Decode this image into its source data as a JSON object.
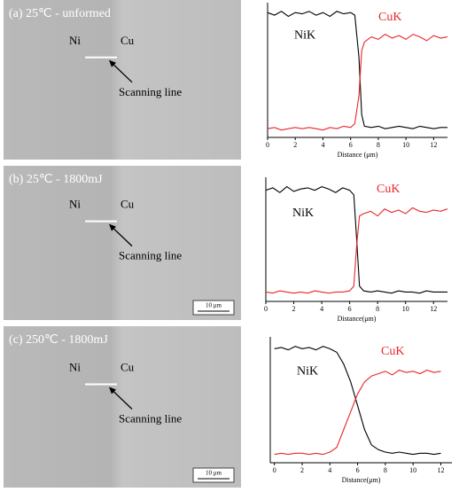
{
  "images": [
    {
      "label": "(a) 25℃ - unformed",
      "left": "Ni",
      "right": "Cu",
      "scan": "Scanning line"
    },
    {
      "label": "(b) 25℃ - 1800mJ",
      "left": "Ni",
      "right": "Cu",
      "scan": "Scanning line",
      "scale": "10 μm"
    },
    {
      "label": "(c) 250℃ - 1800mJ",
      "left": "Ni",
      "right": "Cu",
      "scan": "Scanning line",
      "scale": "10 μm"
    }
  ],
  "chart_data": [
    {
      "type": "line",
      "x_label": "Distance (μm)",
      "xlim": [
        0,
        13
      ],
      "ylim": [
        0,
        100
      ],
      "xticks": [
        0,
        2,
        4,
        6,
        8,
        10,
        12
      ],
      "x": [
        0,
        0.5,
        1,
        1.5,
        2,
        2.5,
        3,
        3.5,
        4,
        4.5,
        5,
        5.5,
        6,
        6.3,
        6.6,
        6.8,
        7,
        7.5,
        8,
        8.5,
        9,
        9.5,
        10,
        10.5,
        11,
        11.5,
        12,
        12.5,
        13
      ],
      "series": [
        {
          "name": "NiK",
          "color": "#000000",
          "values": [
            95,
            93,
            96,
            92,
            95,
            94,
            96,
            93,
            95,
            92,
            96,
            94,
            95,
            93,
            60,
            15,
            6,
            5,
            6,
            4,
            5,
            6,
            5,
            4,
            6,
            5,
            4,
            5,
            5
          ]
        },
        {
          "name": "CuK",
          "color": "#e8262a",
          "values": [
            4,
            5,
            3,
            4,
            5,
            4,
            5,
            4,
            3,
            5,
            4,
            6,
            5,
            8,
            30,
            65,
            72,
            76,
            74,
            78,
            75,
            77,
            74,
            78,
            76,
            73,
            77,
            75,
            76
          ]
        }
      ]
    },
    {
      "type": "line",
      "x_label": "Distance(μm)",
      "xlim": [
        0,
        13
      ],
      "ylim": [
        0,
        100
      ],
      "xticks": [
        0,
        2,
        4,
        6,
        8,
        10,
        12
      ],
      "x": [
        0,
        0.5,
        1,
        1.5,
        2,
        2.5,
        3,
        3.5,
        4,
        4.5,
        5,
        5.5,
        6,
        6.3,
        6.5,
        6.7,
        7,
        7.5,
        8,
        8.5,
        9,
        9.5,
        10,
        10.5,
        11,
        11.5,
        12,
        12.5,
        13
      ],
      "series": [
        {
          "name": "NiK",
          "color": "#000000",
          "values": [
            92,
            94,
            90,
            95,
            91,
            93,
            94,
            92,
            95,
            93,
            90,
            94,
            92,
            88,
            50,
            10,
            6,
            5,
            6,
            5,
            4,
            6,
            5,
            5,
            4,
            6,
            5,
            5,
            5
          ]
        },
        {
          "name": "CuK",
          "color": "#e8262a",
          "values": [
            5,
            4,
            6,
            5,
            4,
            5,
            4,
            6,
            5,
            4,
            5,
            5,
            6,
            10,
            45,
            70,
            72,
            74,
            70,
            76,
            73,
            75,
            72,
            77,
            74,
            73,
            75,
            74,
            76
          ]
        }
      ]
    },
    {
      "type": "line",
      "x_label": "Distance(μm)",
      "xlim": [
        -0.3,
        12.8
      ],
      "ylim": [
        0,
        100
      ],
      "xticks": [
        0,
        2,
        4,
        6,
        8,
        10,
        12
      ],
      "x": [
        0,
        0.5,
        1,
        1.5,
        2,
        2.5,
        3,
        3.5,
        4,
        4.5,
        5,
        5.5,
        6,
        6.5,
        7,
        7.5,
        8,
        8.5,
        9,
        9.5,
        10,
        10.5,
        11,
        11.5,
        12
      ],
      "series": [
        {
          "name": "NiK",
          "color": "#000000",
          "values": [
            93,
            94,
            92,
            95,
            93,
            94,
            92,
            95,
            93,
            90,
            80,
            65,
            45,
            25,
            12,
            8,
            6,
            5,
            6,
            5,
            4,
            5,
            5,
            4,
            5
          ]
        },
        {
          "name": "CuK",
          "color": "#e8262a",
          "values": [
            4,
            5,
            4,
            5,
            5,
            4,
            5,
            4,
            6,
            10,
            25,
            40,
            55,
            65,
            70,
            72,
            74,
            71,
            75,
            73,
            74,
            72,
            75,
            73,
            74
          ]
        }
      ]
    }
  ]
}
